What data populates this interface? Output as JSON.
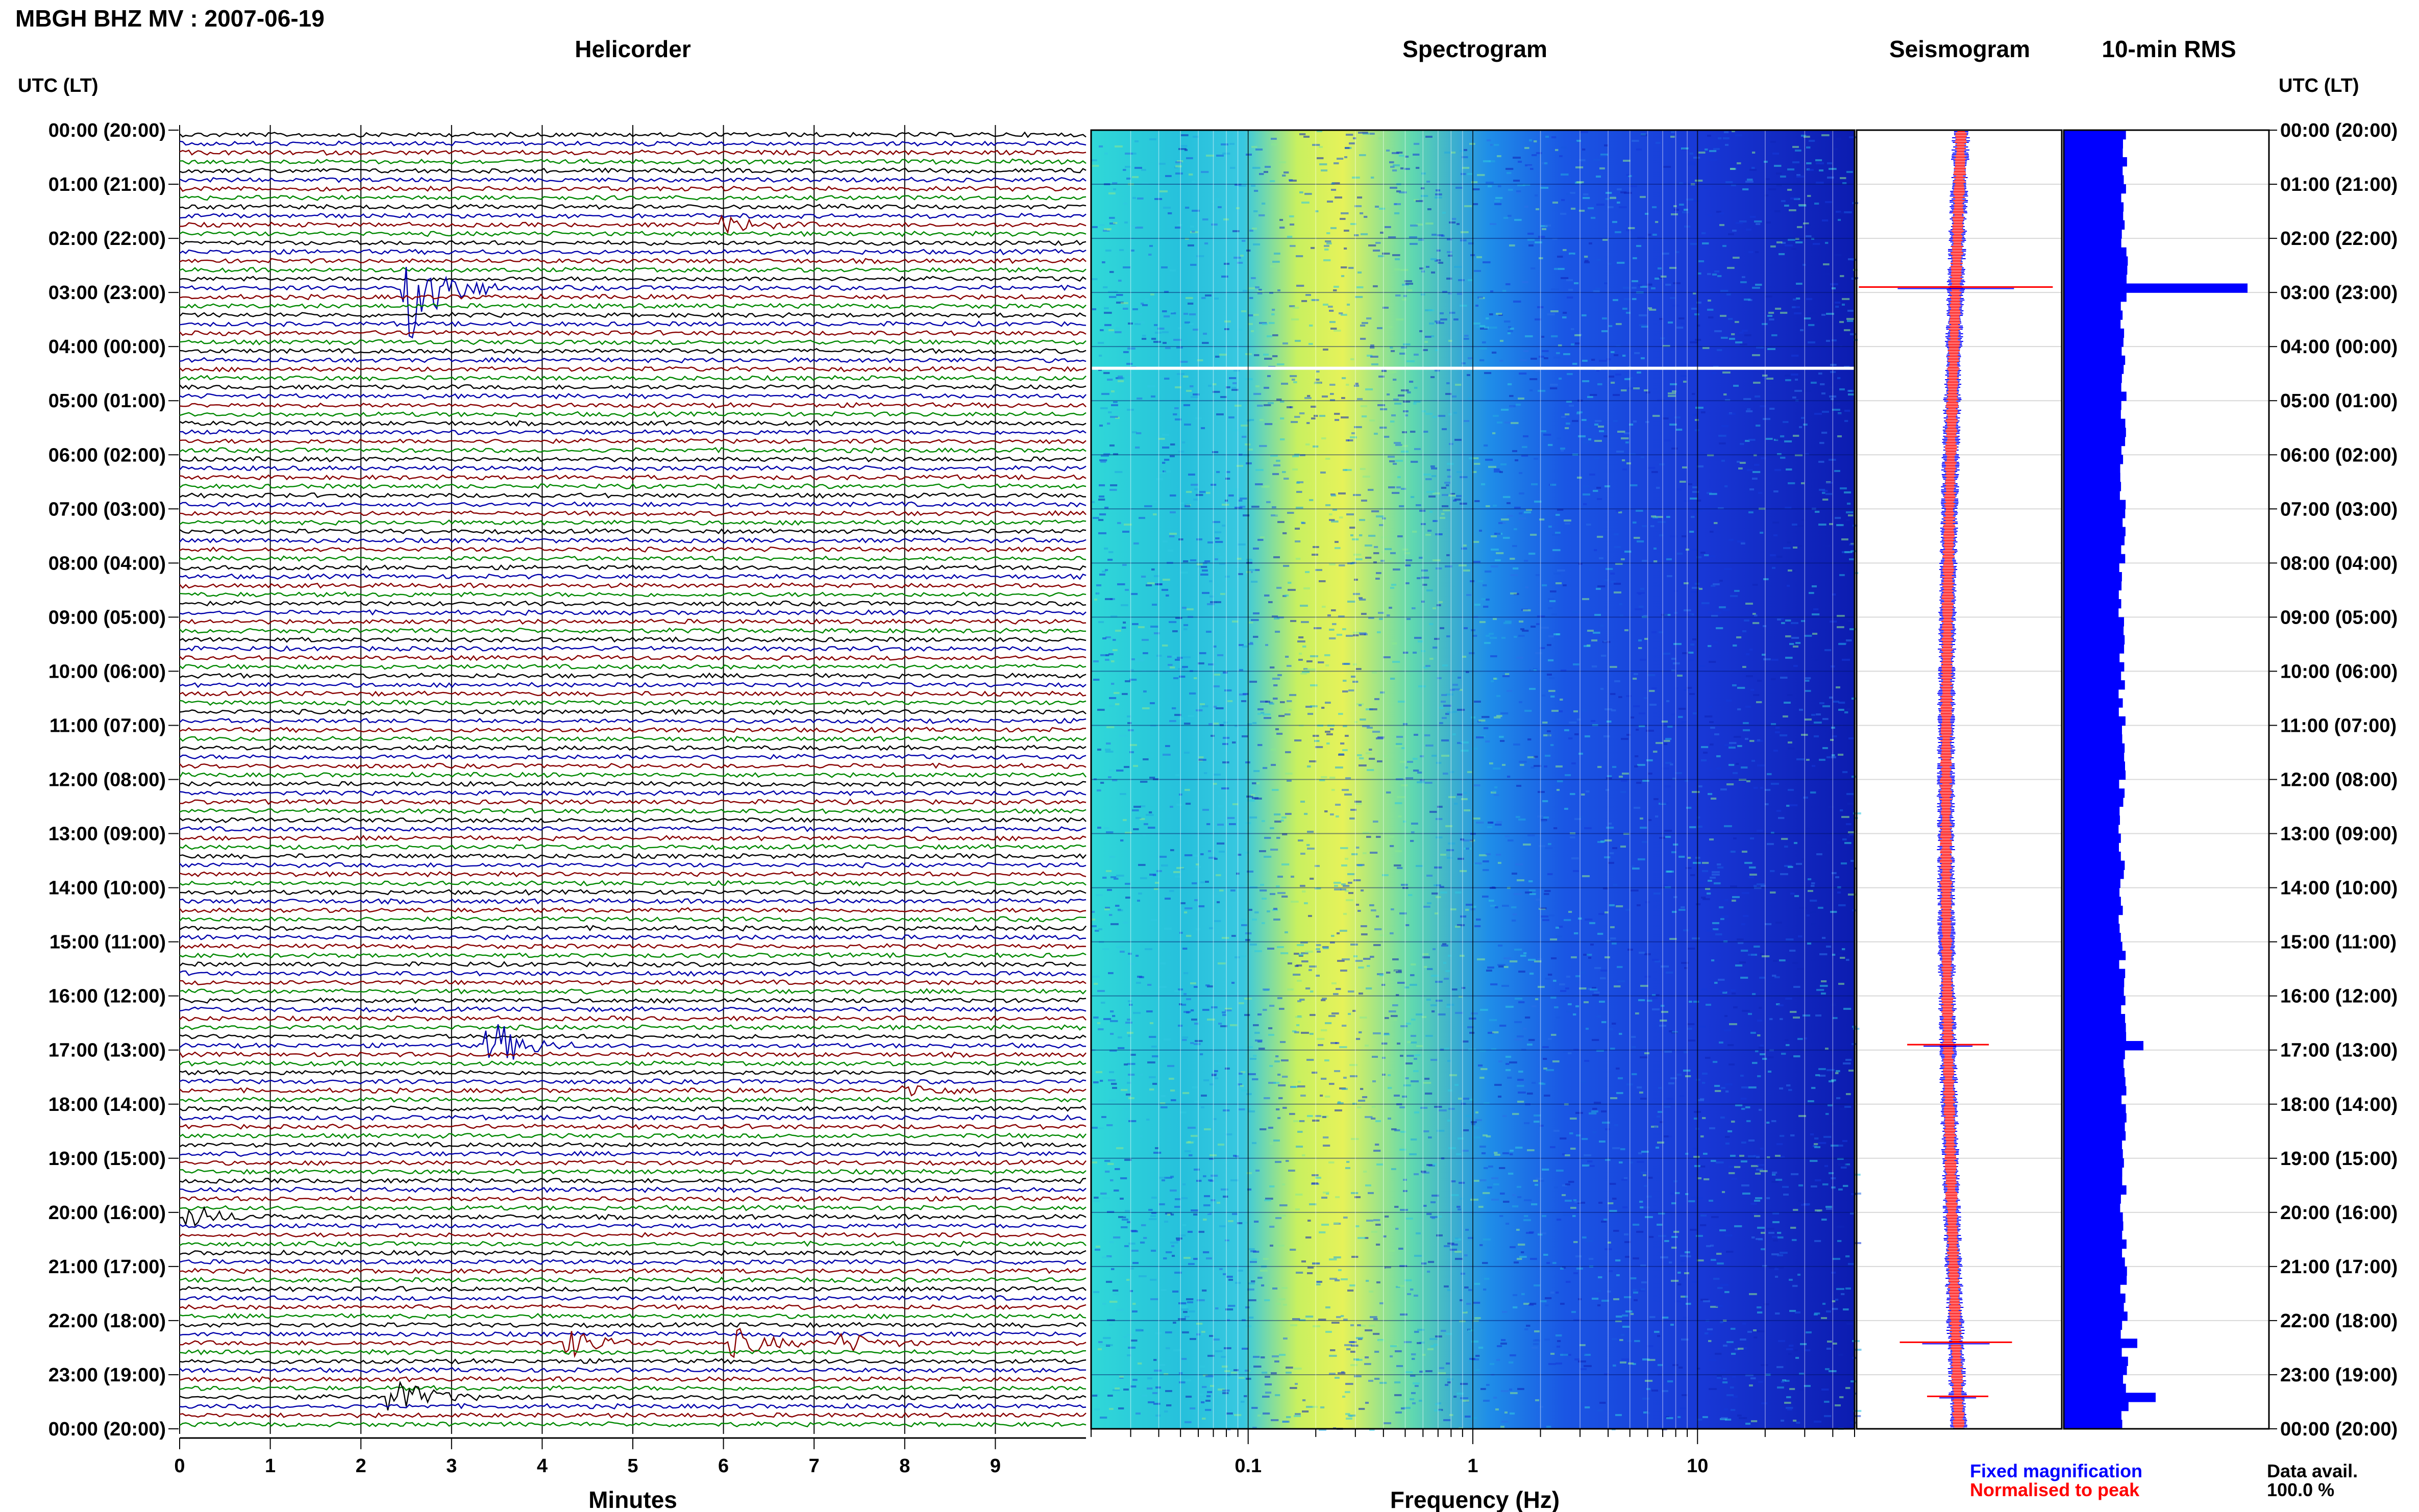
{
  "header": {
    "title": "MBGH BHZ MV : 2007-06-19"
  },
  "panels": {
    "helicorder": "Helicorder",
    "spectrogram": "Spectrogram",
    "seismogram": "Seismogram",
    "rms": "10-min RMS"
  },
  "time_axis": {
    "label": "UTC (LT)",
    "ticks": [
      "00:00 (20:00)",
      "01:00 (21:00)",
      "02:00 (22:00)",
      "03:00 (23:00)",
      "04:00 (00:00)",
      "05:00 (01:00)",
      "06:00 (02:00)",
      "07:00 (03:00)",
      "08:00 (04:00)",
      "09:00 (05:00)",
      "10:00 (06:00)",
      "11:00 (07:00)",
      "12:00 (08:00)",
      "13:00 (09:00)",
      "14:00 (10:00)",
      "15:00 (11:00)",
      "16:00 (12:00)",
      "17:00 (13:00)",
      "18:00 (14:00)",
      "19:00 (15:00)",
      "20:00 (16:00)",
      "21:00 (17:00)",
      "22:00 (18:00)",
      "23:00 (19:00)",
      "00:00 (20:00)"
    ]
  },
  "minutes_axis": {
    "label": "Minutes",
    "ticks": [
      "0",
      "1",
      "2",
      "3",
      "4",
      "5",
      "6",
      "7",
      "8",
      "9"
    ]
  },
  "frequency_axis": {
    "label": "Frequency (Hz)",
    "ticks": [
      "0.1",
      "1",
      "10"
    ]
  },
  "legend": {
    "fixed": "Fixed magnification",
    "normalised": "Normalised to peak"
  },
  "availability": {
    "label": "Data avail.",
    "value": "100.0 %"
  },
  "colors": {
    "trace_cycle": [
      "#000000",
      "#0000aa",
      "#880000",
      "#008800"
    ],
    "fixed": "#0000ff",
    "normalised": "#ff0000",
    "rms_bar": "#0000ff",
    "spec_low": "#0a2ad6",
    "spec_mid": "#28d0e0",
    "spec_high": "#f0f060"
  },
  "chart_data": [
    {
      "type": "line",
      "name": "helicorder",
      "rows_per_hour": 6,
      "minutes_per_row": 10,
      "xlim": [
        0,
        10
      ],
      "events": [
        {
          "utc_hour": 2.83,
          "minute": 2.6,
          "amplitude": 5.0,
          "color": "#880000"
        },
        {
          "utc_hour": 1.67,
          "minute": 6.1,
          "amplitude": 0.6,
          "color": "#0000aa"
        },
        {
          "utc_hour": 16.83,
          "minute": 3.5,
          "amplitude": 2.0,
          "color": "#0000aa"
        },
        {
          "utc_hour": 17.67,
          "minute": 8.1,
          "amplitude": 0.5,
          "color": "#0000aa"
        },
        {
          "utc_hour": 20.0,
          "minute": 0.2,
          "amplitude": 0.8,
          "color": "#880000"
        },
        {
          "utc_hour": 22.33,
          "minute": 4.4,
          "amplitude": 1.0,
          "color": "#0000aa"
        },
        {
          "utc_hour": 22.33,
          "minute": 6.2,
          "amplitude": 1.1,
          "color": "#0000aa"
        },
        {
          "utc_hour": 22.33,
          "minute": 7.4,
          "amplitude": 0.7,
          "color": "#0000aa"
        },
        {
          "utc_hour": 23.33,
          "minute": 2.4,
          "amplitude": 1.6,
          "color": "#000000"
        }
      ]
    },
    {
      "type": "heatmap",
      "name": "spectrogram",
      "xscale": "log",
      "xlim": [
        0.02,
        50
      ],
      "ylim": [
        0,
        24
      ]
    },
    {
      "type": "line",
      "name": "seismogram",
      "series": [
        {
          "name": "Fixed magnification",
          "color": "#0000ff"
        },
        {
          "name": "Normalised to peak",
          "color": "#ff0000"
        }
      ],
      "spikes": [
        {
          "utc_hour": 2.9,
          "half_width": 1.9
        },
        {
          "utc_hour": 16.9,
          "half_width": 0.8
        },
        {
          "utc_hour": 22.4,
          "half_width": 1.1
        },
        {
          "utc_hour": 23.4,
          "half_width": 0.6
        }
      ]
    },
    {
      "type": "bar",
      "name": "10-min RMS",
      "orientation": "horizontal",
      "bins_per_hour": 6,
      "baseline": 1.0,
      "spikes": [
        {
          "utc_hour": 2.9,
          "value": 3.0
        },
        {
          "utc_hour": 16.9,
          "value": 1.3
        },
        {
          "utc_hour": 22.4,
          "value": 1.2
        },
        {
          "utc_hour": 23.4,
          "value": 1.5
        }
      ]
    }
  ]
}
